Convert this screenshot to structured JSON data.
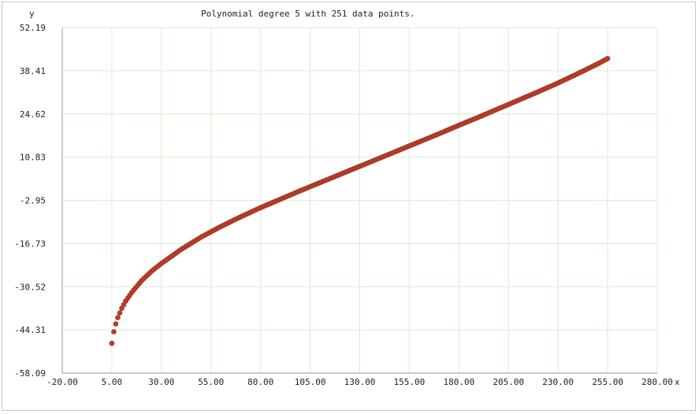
{
  "chart_data": {
    "type": "scatter",
    "title": "Polynomial degree 5 with 251 data points.",
    "xlabel": "x",
    "ylabel": "y",
    "xlim": [
      -20,
      280
    ],
    "ylim": [
      -58.09,
      52.19
    ],
    "x_ticks": [
      "-20.00",
      "5.00",
      "30.00",
      "55.00",
      "80.00",
      "105.00",
      "130.00",
      "155.00",
      "180.00",
      "205.00",
      "230.00",
      "255.00",
      "280.00"
    ],
    "y_ticks": [
      "52.19",
      "38.41",
      "24.62",
      "10.83",
      "-2.95",
      "-16.73",
      "-30.52",
      "-44.31",
      "-58.09"
    ],
    "x_tick_values": [
      -20,
      5,
      30,
      55,
      80,
      105,
      130,
      155,
      180,
      205,
      230,
      255,
      280
    ],
    "y_tick_values": [
      52.19,
      38.41,
      24.62,
      10.83,
      -2.95,
      -16.73,
      -30.52,
      -44.31,
      -58.09
    ],
    "grid": true,
    "series": [
      {
        "name": "",
        "x_range": [
          5,
          255
        ],
        "point_count": 251,
        "points": [
          [
            5,
            -48.6
          ],
          [
            6,
            -44.9
          ],
          [
            7,
            -42.4
          ],
          [
            8,
            -40.4
          ],
          [
            10,
            -37.4
          ],
          [
            12,
            -35.1
          ],
          [
            15,
            -32.4
          ],
          [
            20,
            -28.6
          ],
          [
            25,
            -25.6
          ],
          [
            30,
            -23.1
          ],
          [
            40,
            -18.6
          ],
          [
            50,
            -14.7
          ],
          [
            60,
            -11.3
          ],
          [
            70,
            -8.2
          ],
          [
            80,
            -5.3
          ],
          [
            90,
            -2.6
          ],
          [
            100,
            0.1
          ],
          [
            110,
            2.7
          ],
          [
            120,
            5.3
          ],
          [
            130,
            7.9
          ],
          [
            140,
            10.5
          ],
          [
            150,
            13.1
          ],
          [
            160,
            15.7
          ],
          [
            170,
            18.3
          ],
          [
            180,
            21.0
          ],
          [
            190,
            23.6
          ],
          [
            200,
            26.3
          ],
          [
            210,
            29.0
          ],
          [
            220,
            31.7
          ],
          [
            230,
            34.5
          ],
          [
            240,
            37.5
          ],
          [
            250,
            40.6
          ],
          [
            255,
            42.3
          ]
        ]
      }
    ],
    "colors": {
      "marker_fill": "#c0392b",
      "marker_edge": "#8b3a1e",
      "grid": "#d8ecd0",
      "axis": "#999999"
    }
  }
}
